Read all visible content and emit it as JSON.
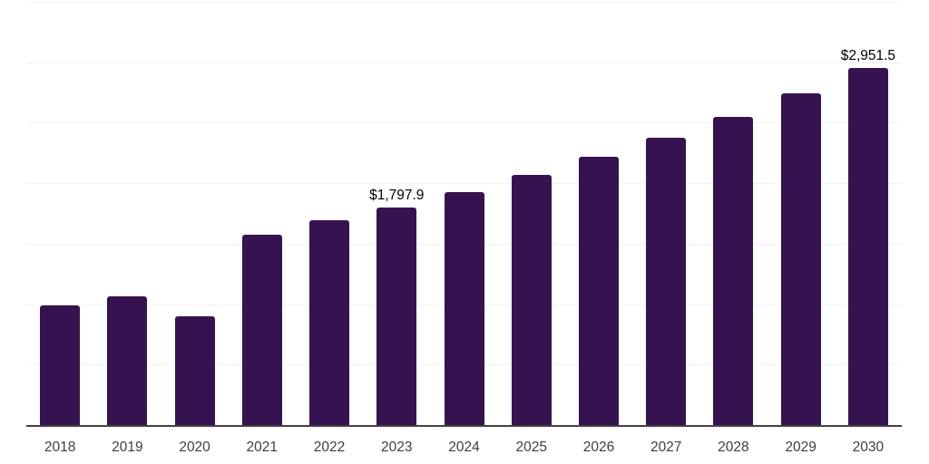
{
  "chart_data": {
    "type": "bar",
    "title": "",
    "xlabel": "",
    "ylabel": "",
    "categories": [
      "2018",
      "2019",
      "2020",
      "2021",
      "2022",
      "2023",
      "2024",
      "2025",
      "2026",
      "2027",
      "2028",
      "2029",
      "2030"
    ],
    "values": [
      990,
      1065,
      900,
      1575,
      1695,
      1797.9,
      1925,
      2070,
      2220,
      2375,
      2550,
      2745,
      2951.5
    ],
    "point_labels": [
      "",
      "",
      "",
      "",
      "",
      "$1,797.9",
      "",
      "",
      "",
      "",
      "",
      "",
      "$2,951.5"
    ],
    "ylim": [
      0,
      3500
    ],
    "grid_step": 500,
    "grid": "horizontal",
    "legend": "none",
    "y_axis_labels_visible": false,
    "colors": {
      "bar": "#371250",
      "grid_line": "#f2f2f2",
      "axis_line": "#414141",
      "tick_label": "#3e3e3e",
      "point_label": "#000000",
      "background": "#ffffff"
    }
  }
}
